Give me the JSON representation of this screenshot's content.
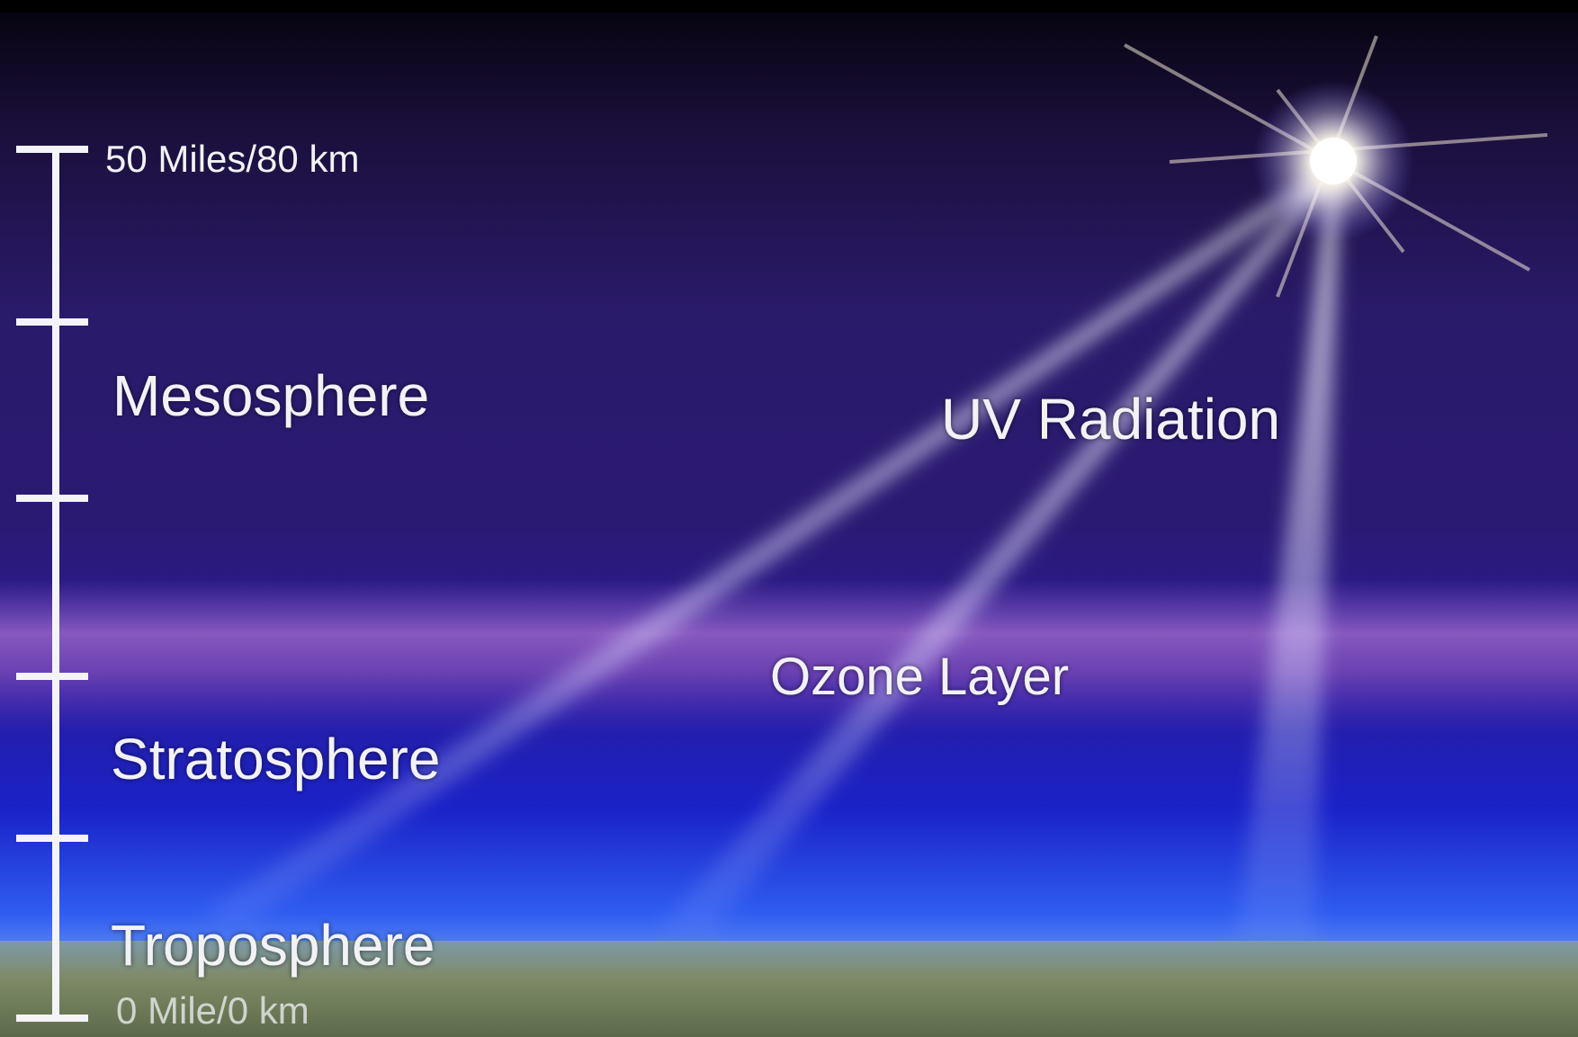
{
  "scale": {
    "top_label": "50 Miles/80 km",
    "bottom_label": "0 Mile/0 km"
  },
  "layers": [
    "Mesosphere",
    "Stratosphere",
    "Troposphere"
  ],
  "annotations": {
    "radiation": "UV Radiation",
    "ozone": "Ozone Layer"
  }
}
